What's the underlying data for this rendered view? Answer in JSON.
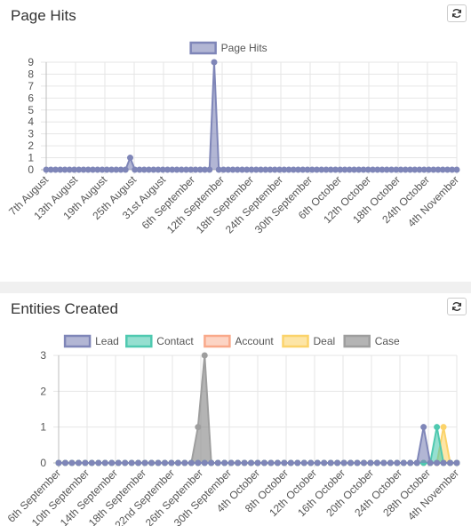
{
  "panels": [
    {
      "title": "Page Hits",
      "refresh_icon": "refresh-icon"
    },
    {
      "title": "Entities Created",
      "refresh_icon": "refresh-icon"
    }
  ],
  "chart_data": [
    {
      "type": "area",
      "title": "",
      "legend_position": "top",
      "grid": true,
      "ylim": [
        0,
        9
      ],
      "y_ticks": [
        "0",
        "1",
        "2",
        "3",
        "4",
        "5",
        "6",
        "7",
        "8",
        "9"
      ],
      "x_tick_labels": [
        "7th August",
        "13th August",
        "19th August",
        "25th August",
        "31st August",
        "6th September",
        "12th September",
        "18th September",
        "24th September",
        "30th September",
        "6th October",
        "12th October",
        "18th October",
        "24th October",
        "4th November"
      ],
      "point_count": 89,
      "series": [
        {
          "name": "Page Hits",
          "color": "#7f86b8",
          "fill": "rgba(127,134,184,0.6)",
          "nonzero_points": [
            {
              "index": 18,
              "value": 1
            },
            {
              "index": 36,
              "value": 9
            }
          ],
          "default_value": 0
        }
      ]
    },
    {
      "type": "area",
      "title": "",
      "legend_position": "top",
      "grid": true,
      "ylim": [
        0,
        3
      ],
      "y_ticks": [
        "0",
        "1",
        "2",
        "3"
      ],
      "x_tick_labels": [
        "6th September",
        "10th September",
        "14th September",
        "18th September",
        "22nd September",
        "26th September",
        "30th September",
        "4th October",
        "8th October",
        "12th October",
        "16th October",
        "20th October",
        "24th October",
        "28th October",
        "4th November"
      ],
      "point_count": 61,
      "series": [
        {
          "name": "Lead",
          "color": "#7f86b8",
          "fill": "rgba(127,134,184,0.6)",
          "nonzero_points": [
            {
              "index": 55,
              "value": 1
            }
          ],
          "default_value": 0
        },
        {
          "name": "Contact",
          "color": "#4fc9b0",
          "fill": "rgba(79,201,176,0.6)",
          "nonzero_points": [
            {
              "index": 57,
              "value": 1
            }
          ],
          "default_value": 0
        },
        {
          "name": "Account",
          "color": "#f9a98a",
          "fill": "rgba(249,169,138,0.5)",
          "nonzero_points": [],
          "default_value": 0
        },
        {
          "name": "Deal",
          "color": "#fbd36a",
          "fill": "rgba(251,211,106,0.6)",
          "nonzero_points": [
            {
              "index": 58,
              "value": 1
            }
          ],
          "default_value": 0
        },
        {
          "name": "Case",
          "color": "#9e9e9e",
          "fill": "rgba(140,140,140,0.65)",
          "nonzero_points": [
            {
              "index": 21,
              "value": 1
            },
            {
              "index": 22,
              "value": 3
            }
          ],
          "default_value": 0
        }
      ]
    }
  ]
}
